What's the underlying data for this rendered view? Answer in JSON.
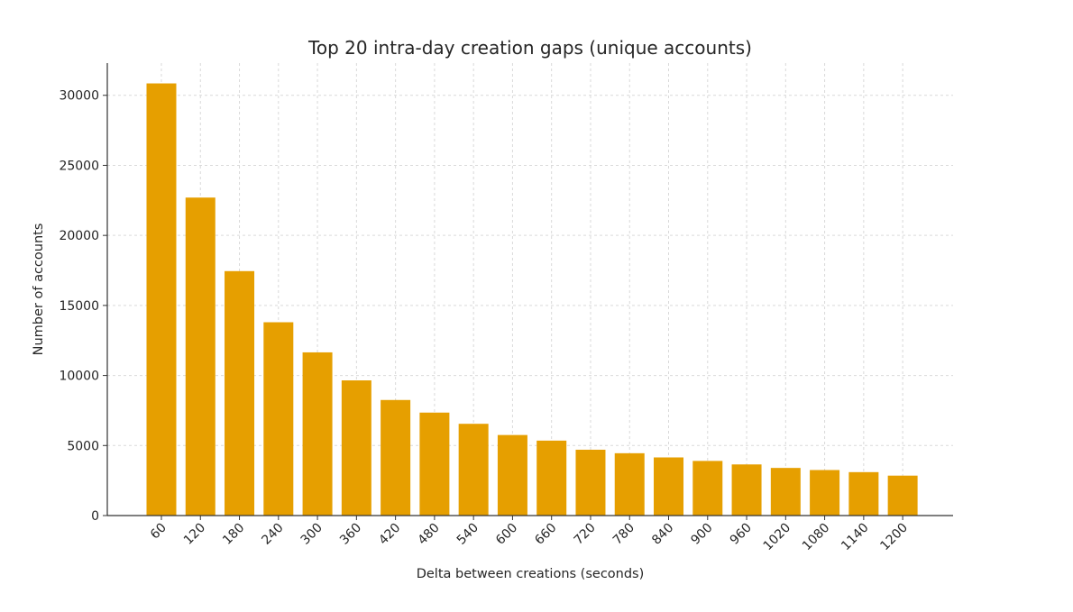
{
  "chart_data": {
    "type": "bar",
    "title": "Top 20 intra-day creation gaps (unique accounts)",
    "xlabel": "Delta between creations (seconds)",
    "ylabel": "Number of accounts",
    "categories": [
      "60",
      "120",
      "180",
      "240",
      "300",
      "360",
      "420",
      "480",
      "540",
      "600",
      "660",
      "720",
      "780",
      "840",
      "900",
      "960",
      "1020",
      "1080",
      "1140",
      "1200"
    ],
    "values": [
      30850,
      22700,
      17450,
      13800,
      11650,
      9650,
      8250,
      7350,
      6550,
      5750,
      5350,
      4700,
      4450,
      4150,
      3900,
      3650,
      3400,
      3250,
      3100,
      2850
    ],
    "ylim": [
      0,
      32300
    ],
    "yticks": [
      "0",
      "5000",
      "10000",
      "15000",
      "20000",
      "25000",
      "30000"
    ],
    "grid": true,
    "legend": "none",
    "bar_color": "#E69F00",
    "grid_color": "#d9d9d9",
    "axis_color": "#333333"
  }
}
